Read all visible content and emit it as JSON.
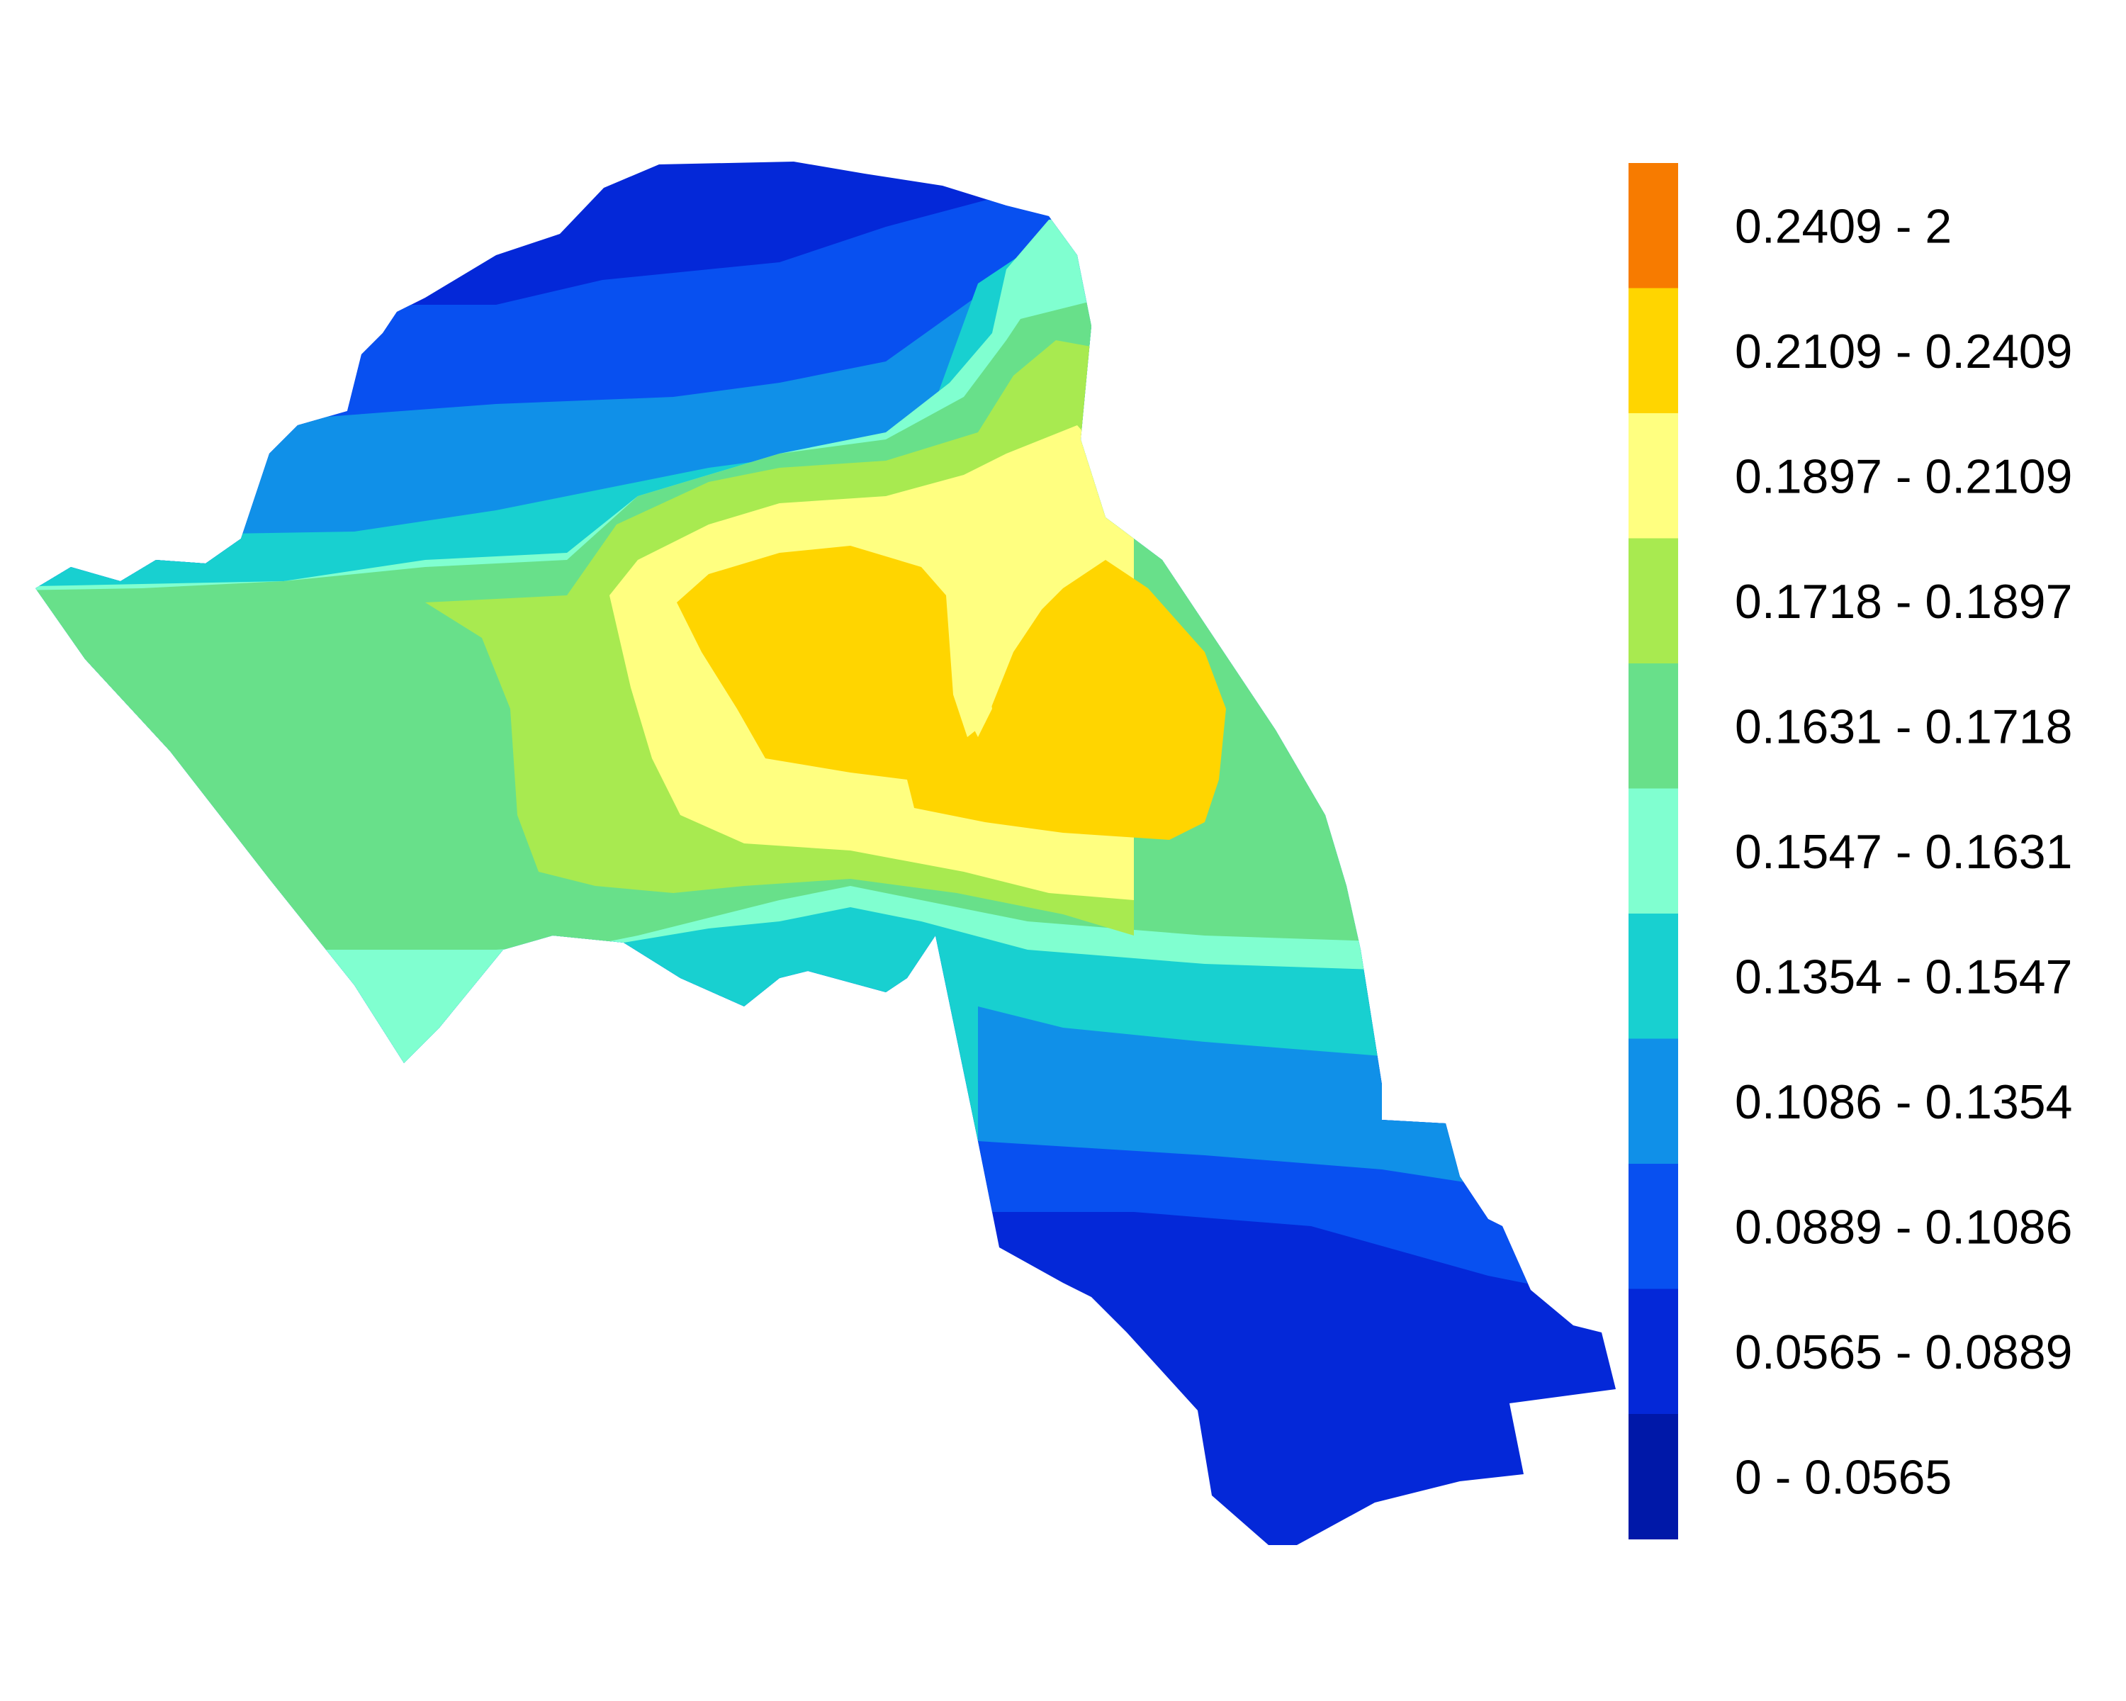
{
  "legend": {
    "classes": [
      {
        "label": "0.2409 - 2",
        "color": "#F77B00"
      },
      {
        "label": "0.2109 - 0.2409",
        "color": "#FFD500"
      },
      {
        "label": "0.1897 - 0.2109",
        "color": "#FFFF80"
      },
      {
        "label": "0.1718 - 0.1897",
        "color": "#A8EA50"
      },
      {
        "label": "0.1631 - 0.1718",
        "color": "#68E08A"
      },
      {
        "label": "0.1547 - 0.1631",
        "color": "#80FFD0"
      },
      {
        "label": "0.1354 - 0.1547",
        "color": "#18D0D0"
      },
      {
        "label": "0.1086 - 0.1354",
        "color": "#1090E8"
      },
      {
        "label": "0.0889 - 0.1086",
        "color": "#0850F0"
      },
      {
        "label": "0.0565 - 0.0889",
        "color": "#0428D8"
      },
      {
        "label": "0 - 0.0565",
        "color": "#0018A8"
      }
    ]
  }
}
